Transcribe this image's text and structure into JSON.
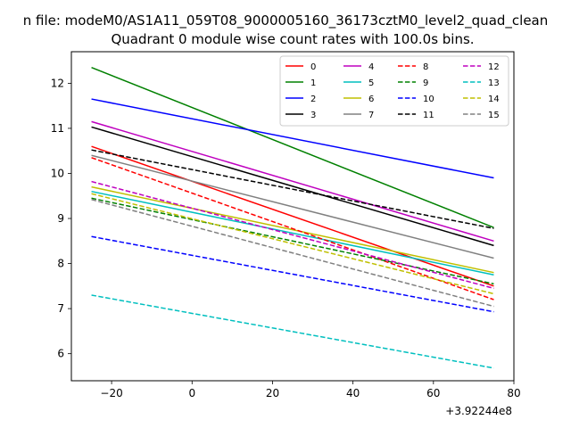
{
  "chart_data": {
    "type": "line",
    "suptitle": "n file: modeM0/AS1A11_059T08_9000005160_36173cztM0_level2_quad_clean",
    "title": "Quadrant 0 module wise count rates with 100.0s bins.",
    "xlabel": "",
    "ylabel": "",
    "x_offset_label": "+3.92244e8",
    "xlim": [
      -30,
      80
    ],
    "ylim": [
      5.4,
      12.7
    ],
    "xticks": [
      -20,
      0,
      20,
      40,
      60,
      80
    ],
    "yticks": [
      6,
      7,
      8,
      9,
      10,
      11,
      12
    ],
    "x": [
      -25,
      75
    ],
    "grid": false,
    "legend": {
      "position": "top-right",
      "columns": 4
    },
    "series": [
      {
        "name": "0",
        "values": [
          10.6,
          7.5
        ],
        "color": "#ff0000",
        "dash": "solid"
      },
      {
        "name": "1",
        "values": [
          12.35,
          8.8
        ],
        "color": "#008000",
        "dash": "solid"
      },
      {
        "name": "2",
        "values": [
          11.65,
          9.9
        ],
        "color": "#0000ff",
        "dash": "solid"
      },
      {
        "name": "3",
        "values": [
          11.03,
          8.4
        ],
        "color": "#000000",
        "dash": "solid"
      },
      {
        "name": "4",
        "values": [
          11.15,
          8.5
        ],
        "color": "#bf00bf",
        "dash": "solid"
      },
      {
        "name": "5",
        "values": [
          9.6,
          7.75
        ],
        "color": "#00bfbf",
        "dash": "solid"
      },
      {
        "name": "6",
        "values": [
          9.7,
          7.8
        ],
        "color": "#bfbf00",
        "dash": "solid"
      },
      {
        "name": "7",
        "values": [
          10.4,
          8.12
        ],
        "color": "#808080",
        "dash": "solid"
      },
      {
        "name": "8",
        "values": [
          10.35,
          7.2
        ],
        "color": "#ff0000",
        "dash": "dashed"
      },
      {
        "name": "9",
        "values": [
          9.45,
          7.55
        ],
        "color": "#008000",
        "dash": "dashed"
      },
      {
        "name": "10",
        "values": [
          8.6,
          6.93
        ],
        "color": "#0000ff",
        "dash": "dashed"
      },
      {
        "name": "11",
        "values": [
          10.52,
          8.78
        ],
        "color": "#000000",
        "dash": "dashed"
      },
      {
        "name": "12",
        "values": [
          9.82,
          7.45
        ],
        "color": "#bf00bf",
        "dash": "dashed"
      },
      {
        "name": "13",
        "values": [
          7.3,
          5.68
        ],
        "color": "#00bfbf",
        "dash": "dashed"
      },
      {
        "name": "14",
        "values": [
          9.55,
          7.33
        ],
        "color": "#bfbf00",
        "dash": "dashed"
      },
      {
        "name": "15",
        "values": [
          9.42,
          7.05
        ],
        "color": "#808080",
        "dash": "dashed"
      }
    ]
  }
}
